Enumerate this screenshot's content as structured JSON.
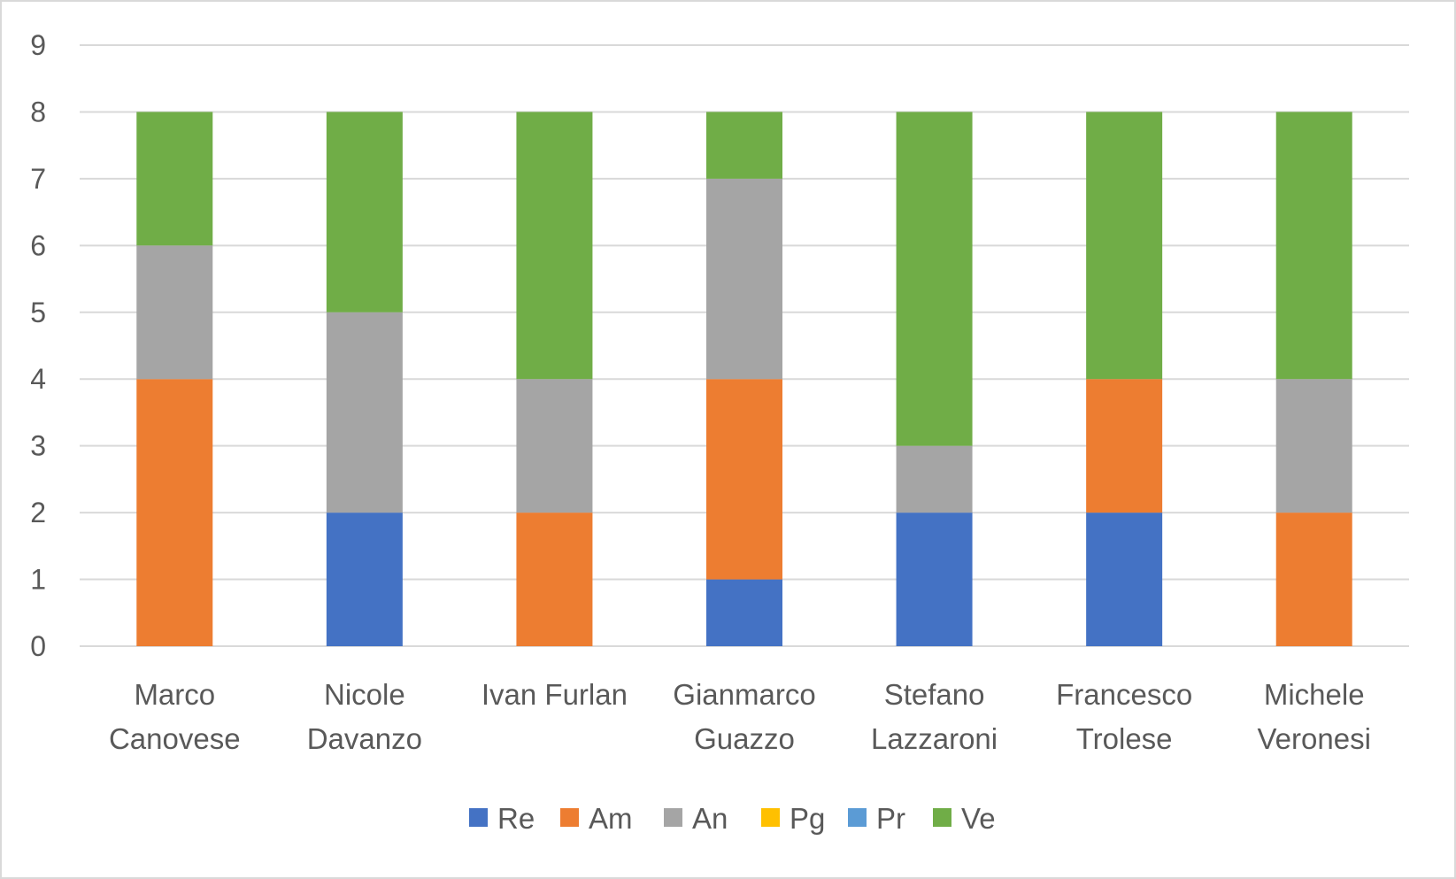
{
  "chart_data": {
    "type": "bar",
    "stacked": true,
    "title": "",
    "xlabel": "",
    "ylabel": "",
    "ylim": [
      0,
      9
    ],
    "yticks": [
      0,
      1,
      2,
      3,
      4,
      5,
      6,
      7,
      8,
      9
    ],
    "grid": true,
    "legend_position": "bottom",
    "categories": [
      [
        "Marco",
        "Canovese"
      ],
      [
        "Nicole",
        "Davanzo"
      ],
      [
        "Ivan Furlan"
      ],
      [
        "Gianmarco",
        "Guazzo"
      ],
      [
        "Stefano",
        "Lazzaroni"
      ],
      [
        "Francesco",
        "Trolese"
      ],
      [
        "Michele",
        "Veronesi"
      ]
    ],
    "series": [
      {
        "name": "Re",
        "color": "#4472c4",
        "values": [
          0,
          2,
          0,
          1,
          2,
          2,
          0
        ]
      },
      {
        "name": "Am",
        "color": "#ed7d31",
        "values": [
          4,
          0,
          2,
          3,
          0,
          2,
          2
        ]
      },
      {
        "name": "An",
        "color": "#a5a5a5",
        "values": [
          2,
          3,
          2,
          3,
          1,
          0,
          2
        ]
      },
      {
        "name": "Pg",
        "color": "#ffc000",
        "values": [
          0,
          0,
          0,
          0,
          0,
          0,
          0
        ]
      },
      {
        "name": "Pr",
        "color": "#5b9bd5",
        "values": [
          0,
          0,
          0,
          0,
          0,
          0,
          0
        ]
      },
      {
        "name": "Ve",
        "color": "#70ad47",
        "values": [
          2,
          3,
          4,
          1,
          5,
          4,
          4
        ]
      }
    ]
  }
}
